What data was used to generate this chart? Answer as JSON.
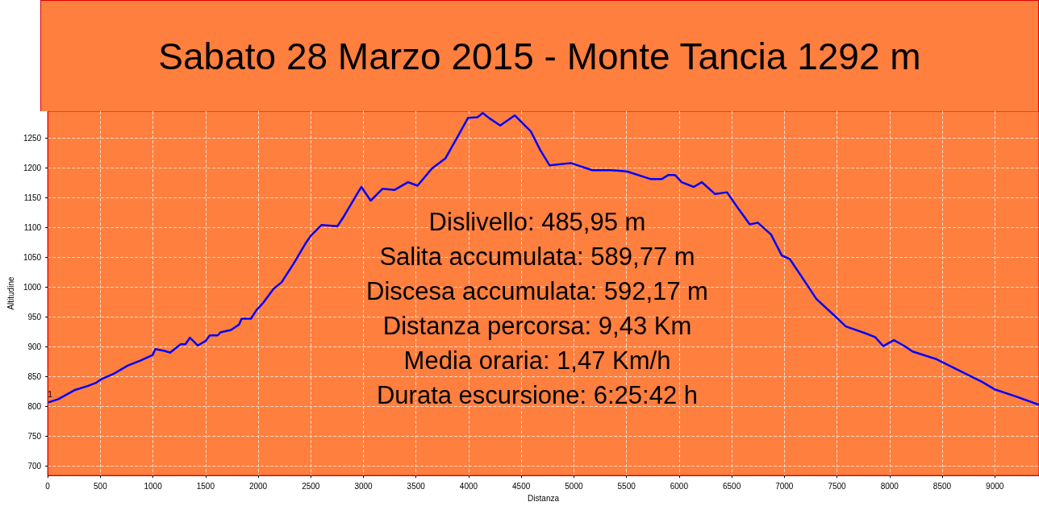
{
  "chart_data": {
    "type": "line",
    "title": "Sabato 28 Marzo 2015 - Monte Tancia 1292 m",
    "xlabel": "Distanza",
    "ylabel": "Altitudine",
    "x": [
      13,
      101,
      253,
      379,
      455,
      505,
      631,
      758,
      884,
      997,
      1023,
      1111,
      1162,
      1263,
      1308,
      1351,
      1427,
      1503,
      1540,
      1616,
      1641,
      1742,
      1818,
      1843,
      1932,
      1982,
      2045,
      2146,
      2222,
      2336,
      2449,
      2500,
      2601,
      2753,
      2816,
      2949,
      2981,
      3069,
      3183,
      3297,
      3424,
      3514,
      3652,
      3780,
      3907,
      3995,
      4084,
      4134,
      4198,
      4300,
      4438,
      4591,
      4680,
      4770,
      4971,
      5175,
      5352,
      5504,
      5733,
      5834,
      5898,
      5961,
      6024,
      6139,
      6215,
      6342,
      6455,
      6569,
      6672,
      6748,
      6874,
      6976,
      7052,
      7204,
      7305,
      7483,
      7584,
      7762,
      7863,
      7939,
      8041,
      8142,
      8218,
      8446,
      8650,
      8878,
      9004,
      9208,
      9411
    ],
    "series": [
      {
        "color": "#0000ff",
        "values": [
          807,
          812,
          827,
          834,
          839,
          845,
          855,
          868,
          877,
          886,
          896,
          893,
          890,
          904,
          904,
          915,
          902,
          910,
          919,
          919,
          924,
          928,
          937,
          947,
          947,
          961,
          973,
          997,
          1008,
          1039,
          1073,
          1086,
          1104,
          1102,
          1119,
          1159,
          1168,
          1145,
          1165,
          1163,
          1176,
          1170,
          1199,
          1216,
          1256,
          1284,
          1285,
          1292,
          1283,
          1271,
          1288,
          1261,
          1230,
          1204,
          1208,
          1196,
          1196,
          1194,
          1181,
          1181,
          1188,
          1188,
          1176,
          1168,
          1176,
          1156,
          1159,
          1130,
          1105,
          1108,
          1088,
          1053,
          1047,
          1007,
          980,
          951,
          934,
          923,
          916,
          901,
          911,
          901,
          892,
          879,
          861,
          841,
          828,
          816,
          803
        ]
      }
    ],
    "xlim": [
      0,
      9420
    ],
    "ylim": [
      684,
      1295
    ],
    "xticks": [
      0,
      500,
      1000,
      1500,
      2000,
      2500,
      3000,
      3500,
      4000,
      4500,
      5000,
      5500,
      6000,
      6500,
      7000,
      7500,
      8000,
      8500,
      9000
    ],
    "yticks": [
      700,
      750,
      800,
      850,
      900,
      950,
      1000,
      1050,
      1100,
      1150,
      1200,
      1250
    ],
    "grid": true,
    "marker": "none",
    "line_style": "solid",
    "annotations": [
      {
        "text": "1",
        "x": 0,
        "y": 812
      },
      "Dislivello: 485,95 m",
      "Salita accumulata: 589,77 m",
      "Discesa accumulata: 592,17 m",
      "Distanza percorsa: 9,43 Km",
      "Media oraria: 1,47 Km/h",
      "Durata escursione: 6:25:42 h"
    ]
  }
}
